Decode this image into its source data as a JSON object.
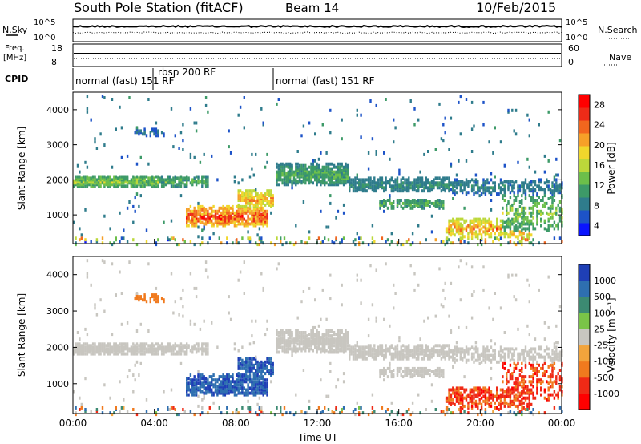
{
  "header": {
    "station": "South Pole Station (fitACF)",
    "beam": "Beam 14",
    "date": "10/Feb/2015"
  },
  "strip_panels": {
    "nsky": {
      "label": "N.Sky",
      "tick_top": "10^5",
      "tick_bottom": "10^0"
    },
    "nsearch": {
      "label": "N.Search",
      "tick_top": "10^5",
      "tick_bottom": "10^0"
    },
    "freq": {
      "label_line1": "Freq.",
      "label_line2": "[MHz]",
      "tick_top": "18",
      "tick_bottom": "8"
    },
    "nave": {
      "label": "Nave",
      "tick_top": "60",
      "tick_bottom": "0"
    },
    "cpid": {
      "label": "CPID"
    }
  },
  "modes": [
    {
      "label": "normal (fast) 151 RF",
      "start_hour": 0
    },
    {
      "label": "rbsp 200 RF",
      "start_hour": 4.0
    },
    {
      "label": "normal (fast) 151 RF",
      "start_hour": 9.7
    }
  ],
  "chart_data": [
    {
      "type": "heatmap",
      "name": "power",
      "xlabel": "",
      "ylabel": "Slant Range [km]",
      "xlim_hours": [
        0,
        24
      ],
      "ylim": [
        180,
        4500
      ],
      "y_ticks": [
        "1000",
        "2000",
        "3000",
        "4000"
      ],
      "colorbar": {
        "label": "Power [dB]",
        "ticks": [
          "4",
          "8",
          "12",
          "16",
          "20",
          "24",
          "28"
        ],
        "colors": [
          "#0a14ff",
          "#1d53c8",
          "#2f7c8c",
          "#3d9a68",
          "#6cbf4a",
          "#bcd83a",
          "#f0d72c",
          "#f6a028",
          "#f2661e",
          "#ee2b18",
          "#ff0000"
        ]
      }
    },
    {
      "type": "heatmap",
      "name": "velocity",
      "xlabel": "Time UT",
      "ylabel": "Slant Range [km]",
      "xlim_hours": [
        0,
        24
      ],
      "ylim": [
        180,
        4500
      ],
      "y_ticks": [
        "1000",
        "2000",
        "3000",
        "4000"
      ],
      "x_ticks": [
        "00:00",
        "04:00",
        "08:00",
        "12:00",
        "16:00",
        "20:00",
        "00:00"
      ],
      "colorbar": {
        "label": "Velocity [m s⁻¹]",
        "ticks": [
          "1000",
          "500",
          "100",
          "25",
          "-25",
          "-100",
          "-500",
          "-1000"
        ],
        "colors": [
          "#1f3fb6",
          "#2e6fb0",
          "#3c8a72",
          "#7ac448",
          "#c8c6c0",
          "#f2a43c",
          "#f07a1e",
          "#ef2a16",
          "#ff0000"
        ]
      }
    }
  ]
}
